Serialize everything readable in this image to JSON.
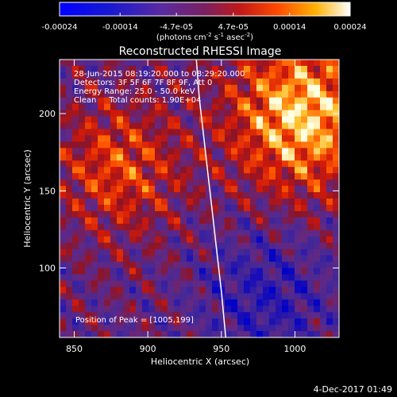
{
  "chart_data": {
    "type": "heatmap",
    "title": "Reconstructed RHESSI Image",
    "xlabel": "Heliocentric X (arcsec)",
    "ylabel": "Heliocentric Y (arcsec)",
    "xlim": [
      840,
      1030
    ],
    "ylim": [
      55,
      235
    ],
    "x_ticks": [
      850,
      900,
      950,
      1000
    ],
    "y_ticks": [
      100,
      150,
      200
    ],
    "colorbar": {
      "label_base": "(photons cm",
      "label_exp1": "-2",
      "label_mid": " s",
      "label_exp2": "-1",
      "label_mid2": " asec",
      "label_exp3": "-2",
      "label_end": ")",
      "range": [
        -0.00024,
        0.00024
      ],
      "tick_values": [
        -0.00024,
        -0.00014,
        -4.7e-05,
        4.7e-05,
        0.00014,
        0.00024
      ],
      "tick_labels": [
        "-0.00024",
        "-0.00014",
        "-4.7e-05",
        "4.7e-05",
        "0.00014",
        "0.00024"
      ]
    },
    "info_lines": [
      "28-Jun-2015 08:19:20.000 to 08:29:20.000",
      "Detectors: 3F 5F 6F 7F 8F 9F, Att 0",
      "Energy Range: 25.0 - 50.0 keV",
      "Clean     Total counts: 1.90E+04"
    ],
    "peak_label": "Position of Peak = [1005,199]",
    "peak_position": [
      1005,
      199
    ],
    "limb_arc": [
      [
        933,
        235
      ],
      [
        935,
        210
      ],
      [
        938,
        185
      ],
      [
        941,
        160
      ],
      [
        944,
        135
      ],
      [
        947,
        110
      ],
      [
        950,
        85
      ],
      [
        953,
        55
      ]
    ],
    "colors": {
      "background": "#000000",
      "low": "#0000ff",
      "mid": "#6a2c8e",
      "high": "#ff2800",
      "peak": "#ffffff"
    }
  },
  "footer": {
    "date": "4-Dec-2017 01:49"
  }
}
